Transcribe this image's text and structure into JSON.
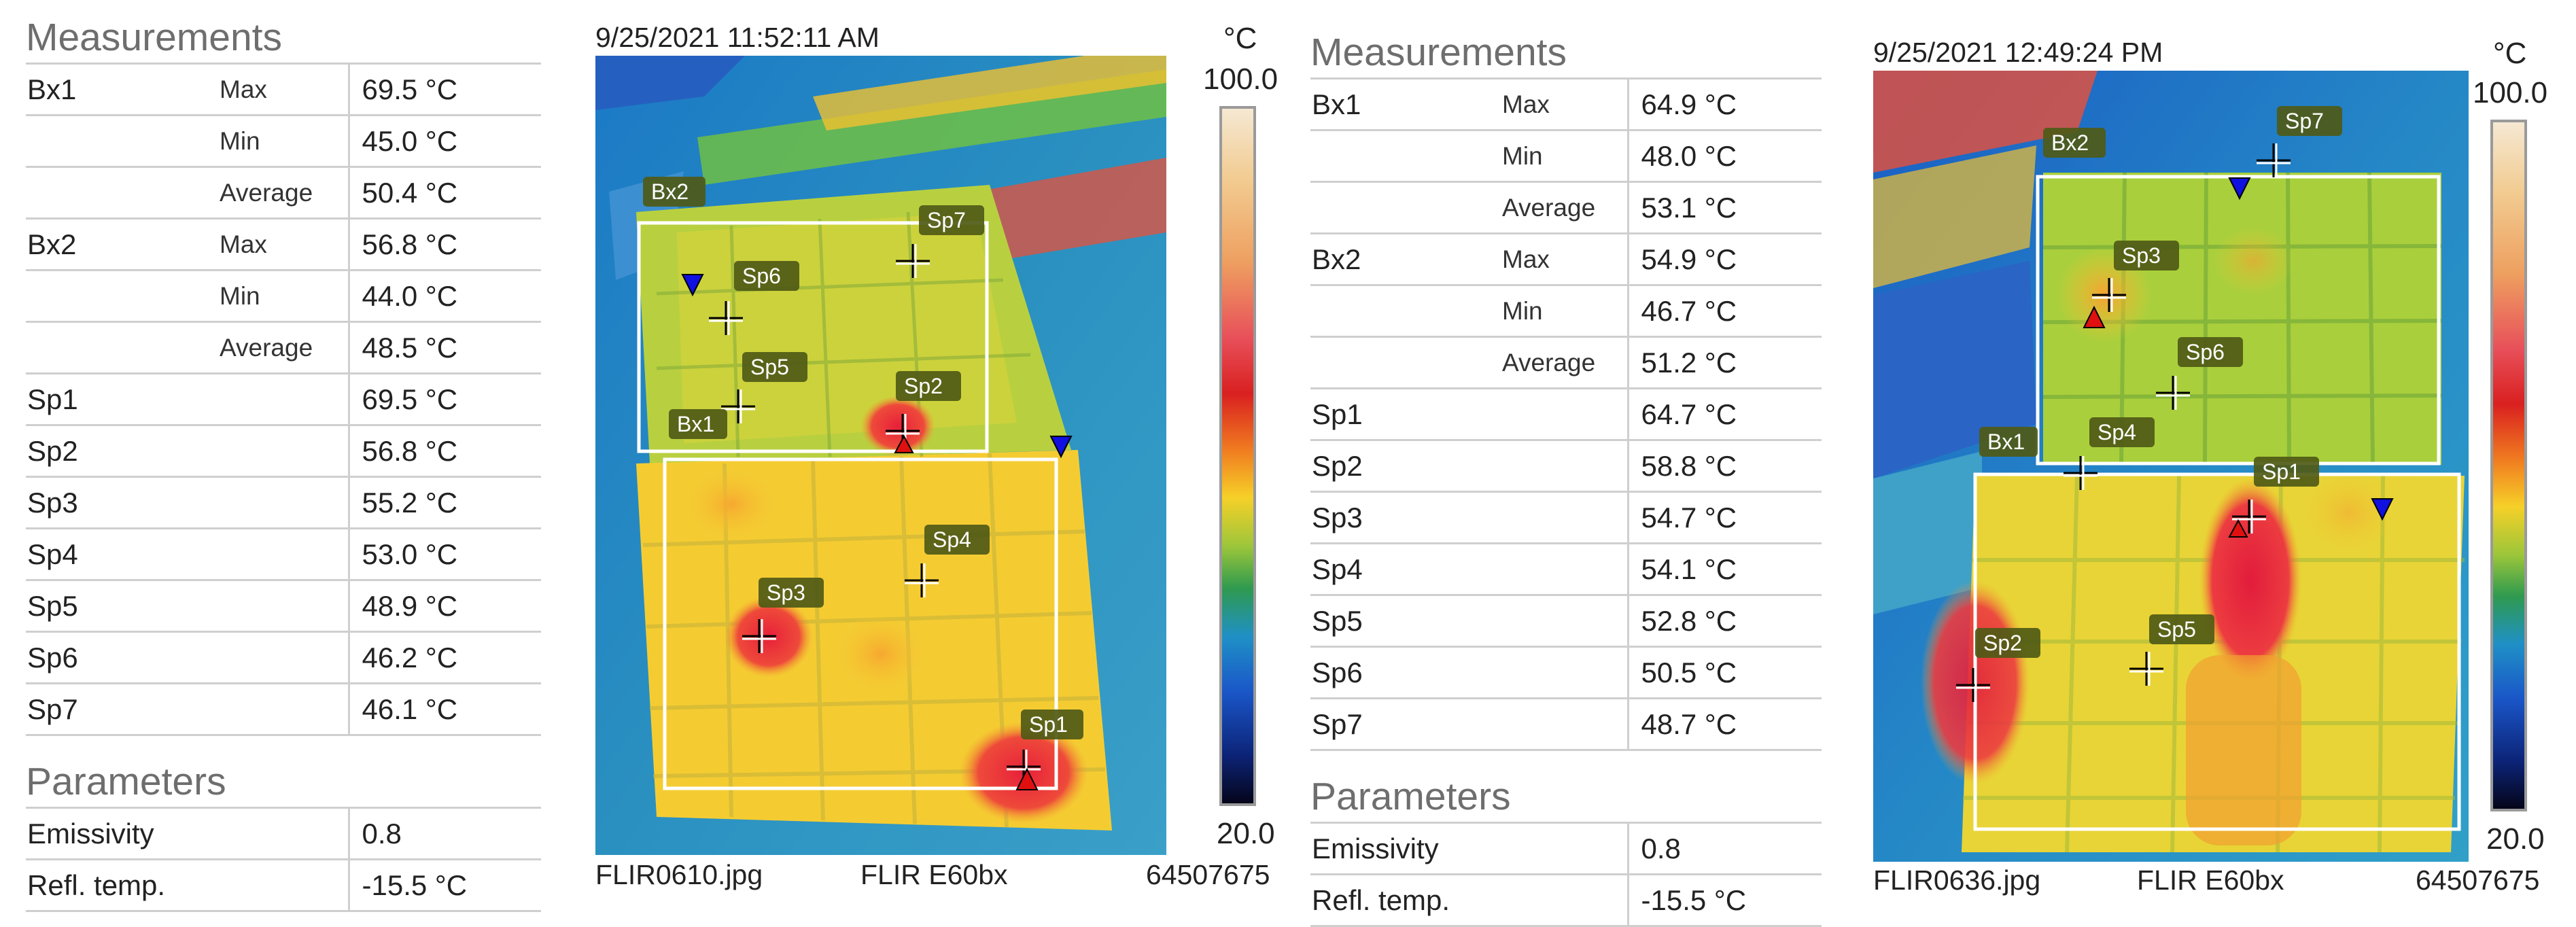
{
  "left": {
    "measurements_title": "Measurements",
    "rows": [
      {
        "name": "Bx1",
        "stat": "Max",
        "value": "69.5 °C"
      },
      {
        "name": "",
        "stat": "Min",
        "value": "45.0 °C"
      },
      {
        "name": "",
        "stat": "Average",
        "value": "50.4 °C"
      },
      {
        "name": "Bx2",
        "stat": "Max",
        "value": "56.8 °C"
      },
      {
        "name": "",
        "stat": "Min",
        "value": "44.0 °C"
      },
      {
        "name": "",
        "stat": "Average",
        "value": "48.5 °C"
      },
      {
        "name": "Sp1",
        "stat": "",
        "value": "69.5 °C"
      },
      {
        "name": "Sp2",
        "stat": "",
        "value": "56.8 °C"
      },
      {
        "name": "Sp3",
        "stat": "",
        "value": "55.2 °C"
      },
      {
        "name": "Sp4",
        "stat": "",
        "value": "53.0 °C"
      },
      {
        "name": "Sp5",
        "stat": "",
        "value": "48.9 °C"
      },
      {
        "name": "Sp6",
        "stat": "",
        "value": "46.2 °C"
      },
      {
        "name": "Sp7",
        "stat": "",
        "value": "46.1 °C"
      }
    ],
    "parameters_title": "Parameters",
    "params": [
      {
        "name": "Emissivity",
        "value": "0.8"
      },
      {
        "name": "Refl. temp.",
        "value": "-15.5 °C"
      }
    ],
    "image": {
      "timestamp": "9/25/2021 11:52:11 AM",
      "unit": "°C",
      "scale_max": "100.0",
      "scale_min": "20.0",
      "filename": "FLIR0610.jpg",
      "camera": "FLIR E60bx",
      "serial": "64507675",
      "labels": [
        "Bx2",
        "Bx1",
        "Sp1",
        "Sp2",
        "Sp3",
        "Sp4",
        "Sp5",
        "Sp6",
        "Sp7"
      ]
    }
  },
  "right": {
    "measurements_title": "Measurements",
    "rows": [
      {
        "name": "Bx1",
        "stat": "Max",
        "value": "64.9 °C"
      },
      {
        "name": "",
        "stat": "Min",
        "value": "48.0 °C"
      },
      {
        "name": "",
        "stat": "Average",
        "value": "53.1 °C"
      },
      {
        "name": "Bx2",
        "stat": "Max",
        "value": "54.9 °C"
      },
      {
        "name": "",
        "stat": "Min",
        "value": "46.7 °C"
      },
      {
        "name": "",
        "stat": "Average",
        "value": "51.2 °C"
      },
      {
        "name": "Sp1",
        "stat": "",
        "value": "64.7 °C"
      },
      {
        "name": "Sp2",
        "stat": "",
        "value": "58.8 °C"
      },
      {
        "name": "Sp3",
        "stat": "",
        "value": "54.7 °C"
      },
      {
        "name": "Sp4",
        "stat": "",
        "value": "54.1 °C"
      },
      {
        "name": "Sp5",
        "stat": "",
        "value": "52.8 °C"
      },
      {
        "name": "Sp6",
        "stat": "",
        "value": "50.5 °C"
      },
      {
        "name": "Sp7",
        "stat": "",
        "value": "48.7 °C"
      }
    ],
    "parameters_title": "Parameters",
    "params": [
      {
        "name": "Emissivity",
        "value": "0.8"
      },
      {
        "name": "Refl. temp.",
        "value": "-15.5 °C"
      }
    ],
    "image": {
      "timestamp": "9/25/2021 12:49:24 PM",
      "unit": "°C",
      "scale_max": "100.0",
      "scale_min": "20.0",
      "filename": "FLIR0636.jpg",
      "camera": "FLIR E60bx",
      "serial": "64507675",
      "labels": [
        "Bx2",
        "Bx1",
        "Sp1",
        "Sp2",
        "Sp3",
        "Sp4",
        "Sp5",
        "Sp6",
        "Sp7"
      ]
    }
  },
  "colors": {
    "grid_line": "#cfcfcf",
    "section_title": "#6e6e6e",
    "label_bg": "#4f5a16",
    "marker_blue": "#1010e0",
    "marker_red": "#e01010",
    "hot": "#e32a3a",
    "warm": "#f4c232",
    "mid": "#8fc43a",
    "cool": "#1d7fc8"
  }
}
